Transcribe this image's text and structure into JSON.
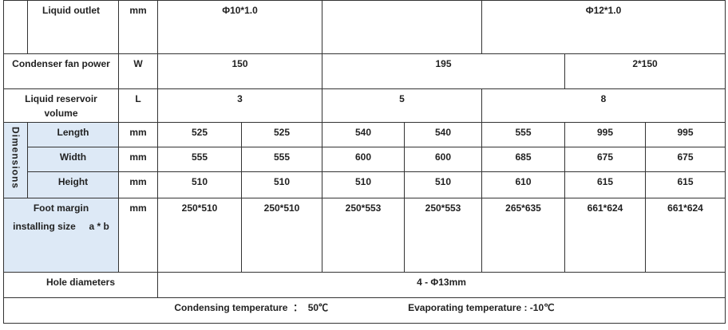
{
  "rows": {
    "liquid_outlet": {
      "label": "Liquid outlet",
      "unit": "mm",
      "values": [
        "Φ10*1.0",
        "",
        "Φ12*1.0"
      ]
    },
    "fan_power": {
      "label": "Condenser fan power",
      "unit": "W",
      "values": [
        "150",
        "195",
        "2*150"
      ]
    },
    "reservoir": {
      "label_line1": "Liquid reservoir",
      "label_line2": "volume",
      "unit": "L",
      "values": [
        "3",
        "5",
        "8"
      ]
    },
    "dimensions": {
      "group_label": "Dimensions",
      "length": {
        "label": "Length",
        "unit": "mm",
        "values": [
          "525",
          "525",
          "540",
          "540",
          "555",
          "995",
          "995"
        ]
      },
      "width": {
        "label": "Width",
        "unit": "mm",
        "values": [
          "555",
          "555",
          "600",
          "600",
          "685",
          "675",
          "675"
        ]
      },
      "height": {
        "label": "Height",
        "unit": "mm",
        "values": [
          "510",
          "510",
          "510",
          "510",
          "610",
          "615",
          "615"
        ]
      }
    },
    "foot_margin": {
      "label_line1": "Foot margin",
      "label_line2": "installing size     a * b",
      "unit": "mm",
      "values": [
        "250*510",
        "250*510",
        "250*553",
        "250*553",
        "265*635",
        "661*624",
        "661*624"
      ]
    },
    "hole_diameters": {
      "label": "Hole diameters",
      "value": "4 -  Φ13mm"
    }
  },
  "footer": {
    "condensing": "Condensing temperature  ：  50℃",
    "evaporating": "Evaporating temperature : -10℃"
  }
}
